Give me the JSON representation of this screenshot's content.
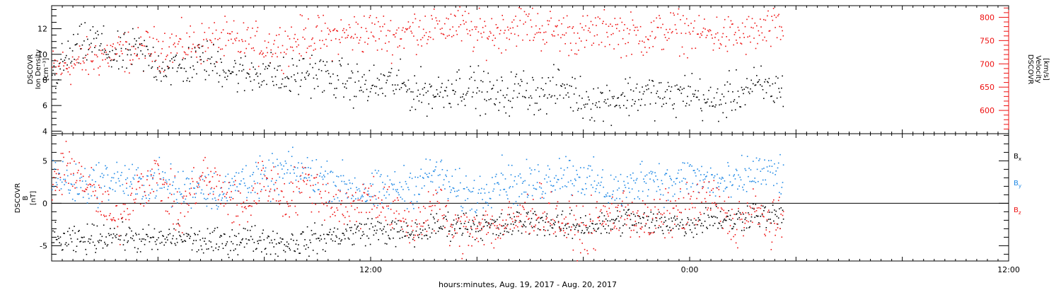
{
  "xaxis": {
    "label": "hours:minutes, Aug. 19, 2017 - Aug. 20, 2017",
    "range_hours": [
      -15,
      30
    ],
    "ticks": [
      {
        "h": 0,
        "label": "12:00"
      },
      {
        "h": 15,
        "label": "0:00"
      },
      {
        "h": 30,
        "label": "12:00"
      }
    ]
  },
  "chart_data": [
    {
      "type": "scatter",
      "panel": "top",
      "ylabel_left": [
        "DSCOVR",
        "Ion Density",
        "[cm⁻³]"
      ],
      "ylabel_right": [
        "DSCOVR",
        "Velocity",
        "[km/s]"
      ],
      "left_axis": {
        "ylim": [
          3.8,
          13.8
        ],
        "ticks": [
          4,
          6,
          8,
          10,
          12
        ]
      },
      "right_axis": {
        "ylim": [
          550,
          825
        ],
        "ticks": [
          600,
          650,
          700,
          750,
          800
        ]
      },
      "x_range_hours": [
        -15,
        30
      ],
      "data_end_hour": 19.4,
      "series": [
        {
          "name": "Ion Density",
          "axis": "left",
          "color": "#000000",
          "x": [
            -15,
            -14,
            -13,
            -12,
            -11,
            -10,
            -9,
            -8,
            -7,
            -6,
            -5,
            -4,
            -3,
            -2,
            -1,
            0,
            1,
            2,
            3,
            4,
            5,
            6,
            7,
            8,
            9,
            10,
            11,
            12,
            13,
            14,
            15,
            16,
            17,
            18,
            19
          ],
          "y": [
            8.2,
            10.3,
            11.1,
            9.8,
            10.4,
            9.2,
            8.9,
            9.6,
            9.1,
            8.4,
            8.8,
            8.0,
            8.7,
            8.3,
            7.8,
            7.5,
            7.9,
            7.2,
            7.0,
            7.6,
            7.4,
            6.6,
            7.4,
            6.9,
            7.5,
            6.5,
            6.4,
            6.8,
            7.0,
            6.6,
            7.2,
            6.1,
            6.9,
            7.5,
            7.3
          ]
        },
        {
          "name": "Velocity",
          "axis": "right",
          "color": "#ee1111",
          "x": [
            -15,
            -14,
            -13,
            -12,
            -11,
            -10,
            -9,
            -8,
            -7,
            -6,
            -5,
            -4,
            -3,
            -2,
            -1,
            0,
            1,
            2,
            3,
            4,
            5,
            6,
            7,
            8,
            9,
            10,
            11,
            12,
            13,
            14,
            15,
            16,
            17,
            18,
            19
          ],
          "y": [
            690,
            700,
            715,
            725,
            730,
            735,
            740,
            745,
            750,
            745,
            740,
            745,
            760,
            758,
            765,
            770,
            760,
            775,
            780,
            785,
            765,
            770,
            790,
            775,
            770,
            760,
            780,
            765,
            760,
            775,
            770,
            765,
            760,
            765,
            775
          ]
        }
      ]
    },
    {
      "type": "scatter",
      "panel": "bottom",
      "ylabel_left": [
        "DSCOVR",
        "B",
        "[nT]"
      ],
      "ylim": [
        -6.8,
        8.2
      ],
      "ticks": [
        -5,
        0,
        5
      ],
      "zero_line": true,
      "x_range_hours": [
        -15,
        30
      ],
      "data_end_hour": 19.4,
      "legend": [
        "Bx",
        "By",
        "Bz"
      ],
      "legend_position": "right",
      "series": [
        {
          "name": "Bx",
          "color": "#000000",
          "x": [
            -15,
            -14,
            -13,
            -12,
            -11,
            -10,
            -9,
            -8,
            -7,
            -6,
            -5,
            -4,
            -3,
            -2,
            -1,
            0,
            1,
            2,
            3,
            4,
            5,
            6,
            7,
            8,
            9,
            10,
            11,
            12,
            13,
            14,
            15,
            16,
            17,
            18,
            19
          ],
          "y": [
            -4.2,
            -4.5,
            -4.0,
            -3.5,
            -4.2,
            -4.4,
            -3.8,
            -4.5,
            -4.6,
            -4.0,
            -4.3,
            -4.6,
            -4.4,
            -3.9,
            -3.5,
            -3.0,
            -3.3,
            -3.6,
            -2.7,
            -2.4,
            -2.5,
            -2.9,
            -2.2,
            -2.0,
            -2.8,
            -2.4,
            -2.6,
            -1.8,
            -2.3,
            -2.0,
            -2.5,
            -1.5,
            -2.1,
            -1.0,
            -1.7
          ]
        },
        {
          "name": "By",
          "color": "#1e88e5",
          "x": [
            -15,
            -14,
            -13,
            -12,
            -11,
            -10,
            -9,
            -8,
            -7,
            -6,
            -5,
            -4,
            -3,
            -2,
            -1,
            0,
            1,
            2,
            3,
            4,
            5,
            6,
            7,
            8,
            9,
            10,
            11,
            12,
            13,
            14,
            15,
            16,
            17,
            18,
            19
          ],
          "y": [
            3.8,
            2.0,
            2.5,
            3.0,
            2.2,
            2.8,
            1.5,
            2.4,
            1.0,
            3.2,
            2.6,
            3.9,
            3.5,
            3.0,
            2.0,
            1.2,
            1.6,
            2.2,
            3.7,
            1.4,
            1.0,
            3.2,
            2.0,
            2.6,
            3.8,
            3.1,
            1.8,
            1.5,
            3.6,
            2.2,
            3.3,
            2.7,
            2.1,
            3.8,
            3.4
          ]
        },
        {
          "name": "Bz",
          "color": "#ee1111",
          "x": [
            -15,
            -14,
            -13,
            -12,
            -11,
            -10,
            -9,
            -8,
            -7,
            -6,
            -5,
            -4,
            -3,
            -2,
            -1,
            0,
            1,
            2,
            3,
            4,
            5,
            6,
            7,
            8,
            9,
            10,
            11,
            12,
            13,
            14,
            15,
            16,
            17,
            18,
            19
          ],
          "y": [
            2.5,
            4.5,
            1.0,
            -2.5,
            2.2,
            3.2,
            -1.5,
            3.5,
            1.5,
            -1.0,
            3.2,
            0.5,
            2.6,
            0.5,
            -0.8,
            1.2,
            -1.2,
            -2.8,
            0.2,
            -3.6,
            -2.2,
            -3.0,
            -1.6,
            -0.5,
            -2.2,
            -3.4,
            -1.5,
            -0.8,
            -2.5,
            -1.2,
            -0.5,
            0.8,
            -2.4,
            -1.0,
            -2.6
          ]
        }
      ]
    }
  ]
}
